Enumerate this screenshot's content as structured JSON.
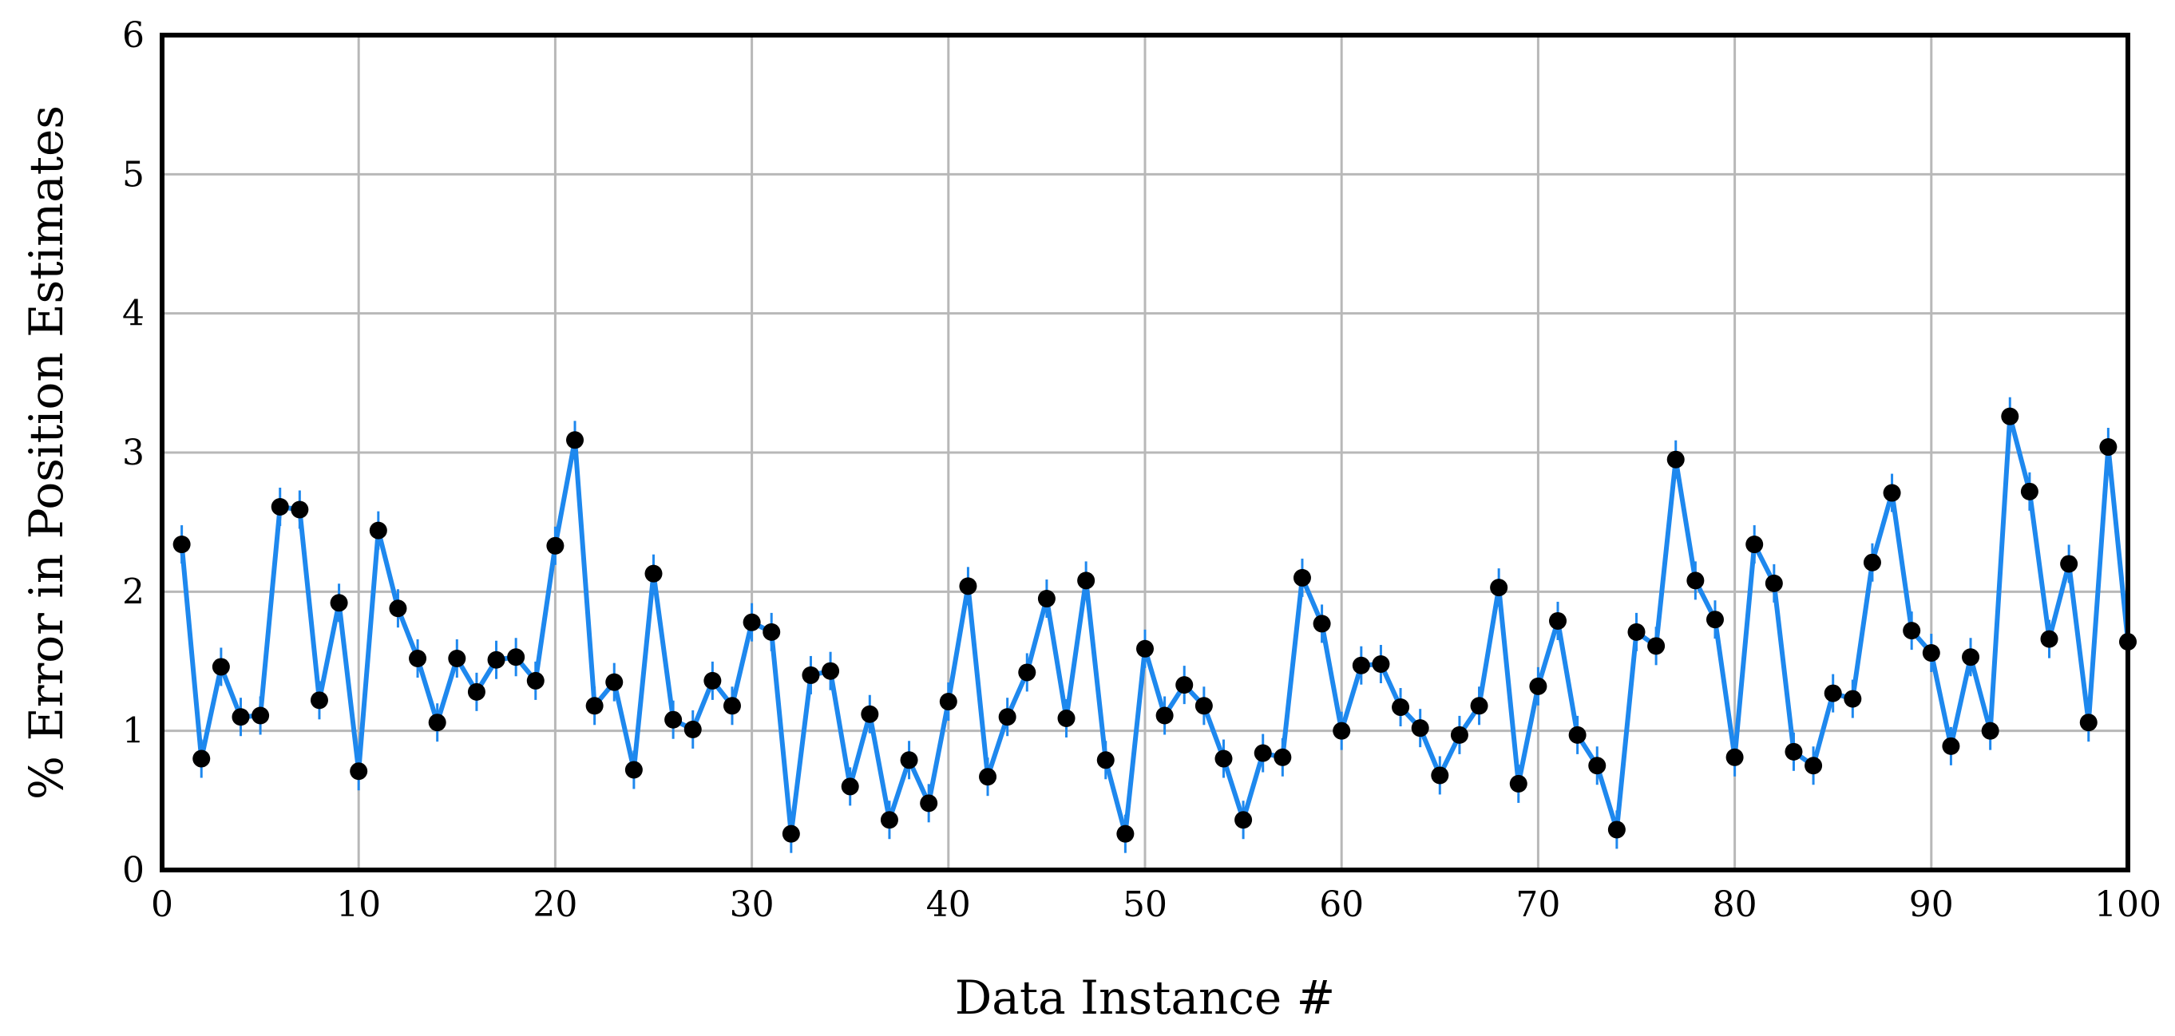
{
  "chart_data": {
    "type": "line",
    "xlabel": "Data Instance #",
    "ylabel": "% Error in Position Estimates",
    "xlim": [
      0,
      100
    ],
    "ylim": [
      0,
      6
    ],
    "xticks": [
      0,
      10,
      20,
      30,
      40,
      50,
      60,
      70,
      80,
      90,
      100
    ],
    "yticks": [
      0,
      1,
      2,
      3,
      4,
      5,
      6
    ],
    "grid": true,
    "colors": {
      "line": "#1e88ee",
      "marker": "#000000",
      "grid": "#b8b8b8"
    },
    "series": [
      {
        "x": [
          1,
          2,
          3,
          4,
          5,
          6,
          7,
          8,
          9,
          10,
          11,
          12,
          13,
          14,
          15,
          16,
          17,
          18,
          19,
          20,
          21,
          22,
          23,
          24,
          25,
          26,
          27,
          28,
          29,
          30,
          31,
          32,
          33,
          34,
          35,
          36,
          37,
          38,
          39,
          40,
          41,
          42,
          43,
          44,
          45,
          46,
          47,
          48,
          49,
          50,
          51,
          52,
          53,
          54,
          55,
          56,
          57,
          58,
          59,
          60,
          61,
          62,
          63,
          64,
          65,
          66,
          67,
          68,
          69,
          70,
          71,
          72,
          73,
          74,
          75,
          76,
          77,
          78,
          79,
          80,
          81,
          82,
          83,
          84,
          85,
          86,
          87,
          88,
          89,
          90,
          91,
          92,
          93,
          94,
          95,
          96,
          97,
          98,
          99,
          100
        ],
        "values": [
          2.34,
          0.8,
          1.46,
          1.1,
          1.11,
          2.61,
          2.59,
          1.22,
          1.92,
          0.71,
          2.44,
          1.88,
          1.52,
          1.06,
          1.52,
          1.28,
          1.51,
          1.53,
          1.36,
          2.33,
          3.09,
          1.18,
          1.35,
          0.72,
          2.13,
          1.08,
          1.01,
          1.36,
          1.18,
          1.78,
          1.71,
          0.26,
          1.4,
          1.43,
          0.6,
          1.12,
          0.36,
          0.79,
          0.48,
          1.21,
          2.04,
          0.67,
          1.1,
          1.42,
          1.95,
          1.09,
          2.08,
          0.79,
          0.26,
          1.59,
          1.11,
          1.33,
          1.18,
          0.8,
          0.36,
          0.84,
          0.81,
          2.1,
          1.77,
          1.0,
          1.47,
          1.48,
          1.17,
          1.02,
          0.68,
          0.97,
          1.18,
          2.03,
          0.62,
          1.32,
          1.79,
          0.97,
          0.75,
          0.29,
          1.71,
          1.61,
          2.95,
          2.08,
          1.8,
          0.81,
          2.34,
          2.06,
          0.85,
          0.75,
          1.27,
          1.23,
          2.21,
          2.71,
          1.72,
          1.56,
          0.89,
          1.53,
          1.0,
          3.26,
          2.72,
          1.66,
          2.2,
          1.06,
          3.04,
          1.64
        ]
      }
    ]
  }
}
